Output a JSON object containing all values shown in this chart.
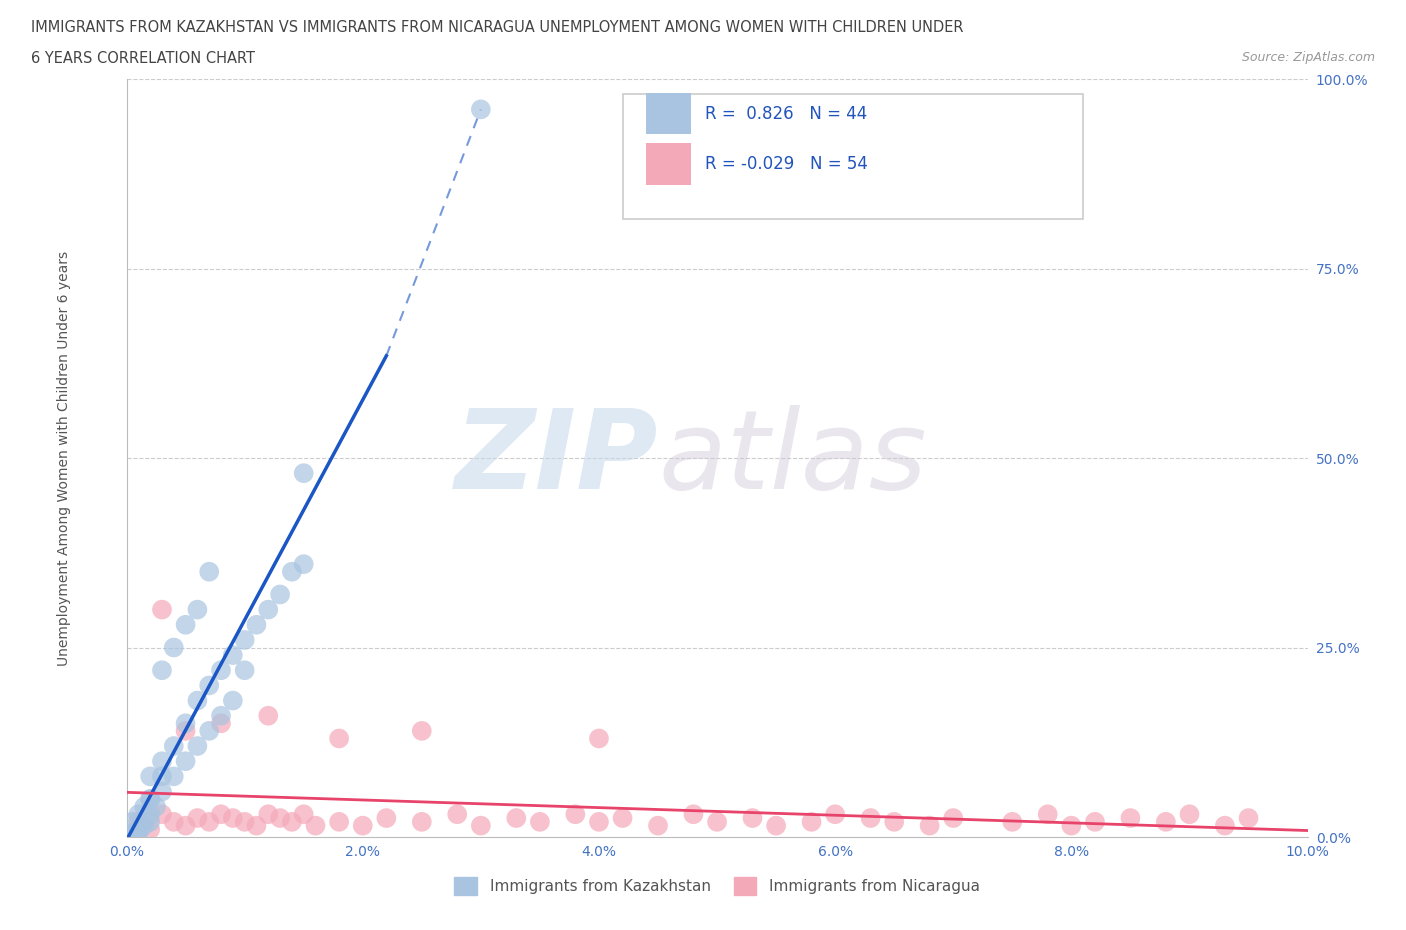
{
  "title_line1": "IMMIGRANTS FROM KAZAKHSTAN VS IMMIGRANTS FROM NICARAGUA UNEMPLOYMENT AMONG WOMEN WITH CHILDREN UNDER",
  "title_line2": "6 YEARS CORRELATION CHART",
  "source": "Source: ZipAtlas.com",
  "ylabel": "Unemployment Among Women with Children Under 6 years",
  "xlim": [
    0.0,
    0.1
  ],
  "ylim": [
    0.0,
    1.0
  ],
  "xticks": [
    0.0,
    0.02,
    0.04,
    0.06,
    0.08,
    0.1
  ],
  "yticks": [
    0.0,
    0.25,
    0.5,
    0.75,
    1.0
  ],
  "xtick_labels": [
    "0.0%",
    "2.0%",
    "4.0%",
    "6.0%",
    "8.0%",
    "10.0%"
  ],
  "ytick_labels": [
    "0.0%",
    "25.0%",
    "50.0%",
    "75.0%",
    "100.0%"
  ],
  "kazakhstan_color": "#a8c4e0",
  "nicaragua_color": "#f4a9b8",
  "trend_kaz_color": "#1a56c4",
  "trend_nic_color": "#e8436a",
  "R_kaz": 0.826,
  "N_kaz": 44,
  "R_nic": -0.029,
  "N_nic": 54,
  "legend_label_kaz": "Immigrants from Kazakhstan",
  "legend_label_nic": "Immigrants from Nicaragua",
  "watermark_zip": "ZIP",
  "watermark_atlas": "atlas",
  "kazakhstan_x": [
    0.0005,
    0.001,
    0.001,
    0.0015,
    0.0015,
    0.002,
    0.002,
    0.002,
    0.0025,
    0.003,
    0.003,
    0.003,
    0.004,
    0.004,
    0.005,
    0.005,
    0.006,
    0.006,
    0.007,
    0.007,
    0.008,
    0.008,
    0.009,
    0.009,
    0.01,
    0.01,
    0.011,
    0.012,
    0.013,
    0.014,
    0.015,
    0.015,
    0.0005,
    0.001,
    0.001,
    0.0015,
    0.002,
    0.002,
    0.003,
    0.004,
    0.005,
    0.006,
    0.007,
    0.03
  ],
  "kazakhstan_y": [
    0.02,
    0.01,
    0.03,
    0.02,
    0.04,
    0.03,
    0.05,
    0.08,
    0.04,
    0.06,
    0.08,
    0.1,
    0.08,
    0.12,
    0.1,
    0.15,
    0.12,
    0.18,
    0.14,
    0.2,
    0.16,
    0.22,
    0.18,
    0.24,
    0.22,
    0.26,
    0.28,
    0.3,
    0.32,
    0.35,
    0.36,
    0.48,
    0.005,
    0.005,
    0.01,
    0.015,
    0.02,
    0.05,
    0.22,
    0.25,
    0.28,
    0.3,
    0.35,
    0.96
  ],
  "nicaragua_x": [
    0.001,
    0.002,
    0.003,
    0.004,
    0.005,
    0.006,
    0.007,
    0.008,
    0.009,
    0.01,
    0.011,
    0.012,
    0.013,
    0.014,
    0.015,
    0.016,
    0.018,
    0.02,
    0.022,
    0.025,
    0.028,
    0.03,
    0.033,
    0.035,
    0.038,
    0.04,
    0.042,
    0.045,
    0.048,
    0.05,
    0.053,
    0.055,
    0.058,
    0.06,
    0.063,
    0.065,
    0.068,
    0.07,
    0.075,
    0.078,
    0.08,
    0.082,
    0.085,
    0.088,
    0.09,
    0.093,
    0.095,
    0.003,
    0.005,
    0.008,
    0.012,
    0.018,
    0.025,
    0.04
  ],
  "nicaragua_y": [
    0.02,
    0.01,
    0.03,
    0.02,
    0.015,
    0.025,
    0.02,
    0.03,
    0.025,
    0.02,
    0.015,
    0.03,
    0.025,
    0.02,
    0.03,
    0.015,
    0.02,
    0.015,
    0.025,
    0.02,
    0.03,
    0.015,
    0.025,
    0.02,
    0.03,
    0.02,
    0.025,
    0.015,
    0.03,
    0.02,
    0.025,
    0.015,
    0.02,
    0.03,
    0.025,
    0.02,
    0.015,
    0.025,
    0.02,
    0.03,
    0.015,
    0.02,
    0.025,
    0.02,
    0.03,
    0.015,
    0.025,
    0.3,
    0.14,
    0.15,
    0.16,
    0.13,
    0.14,
    0.13
  ]
}
